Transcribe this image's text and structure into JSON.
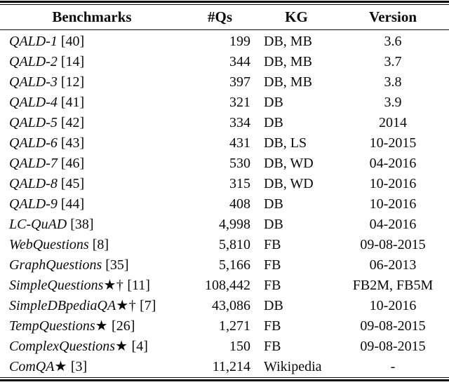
{
  "table": {
    "columns": [
      "Benchmarks",
      "#Qs",
      "KG",
      "Version"
    ],
    "rows": [
      {
        "name": "QALD-1",
        "marks": "",
        "cite": "[40]",
        "qs": "199",
        "kg": "DB, MB",
        "version": "3.6"
      },
      {
        "name": "QALD-2",
        "marks": "",
        "cite": "[14]",
        "qs": "344",
        "kg": "DB, MB",
        "version": "3.7"
      },
      {
        "name": "QALD-3",
        "marks": "",
        "cite": "[12]",
        "qs": "397",
        "kg": "DB, MB",
        "version": "3.8"
      },
      {
        "name": "QALD-4",
        "marks": "",
        "cite": "[41]",
        "qs": "321",
        "kg": "DB",
        "version": "3.9"
      },
      {
        "name": "QALD-5",
        "marks": "",
        "cite": "[42]",
        "qs": "334",
        "kg": "DB",
        "version": "2014"
      },
      {
        "name": "QALD-6",
        "marks": "",
        "cite": "[43]",
        "qs": "431",
        "kg": "DB, LS",
        "version": "10-2015"
      },
      {
        "name": "QALD-7",
        "marks": "",
        "cite": "[46]",
        "qs": "530",
        "kg": "DB, WD",
        "version": "04-2016"
      },
      {
        "name": "QALD-8",
        "marks": "",
        "cite": "[45]",
        "qs": "315",
        "kg": "DB, WD",
        "version": "10-2016"
      },
      {
        "name": "QALD-9",
        "marks": "",
        "cite": "[44]",
        "qs": "408",
        "kg": "DB",
        "version": "10-2016"
      },
      {
        "name": "LC-QuAD",
        "marks": "",
        "cite": "[38]",
        "qs": "4,998",
        "kg": "DB",
        "version": "04-2016"
      },
      {
        "name": "WebQuestions",
        "marks": "",
        "cite": "[8]",
        "qs": "5,810",
        "kg": "FB",
        "version": "09-08-2015"
      },
      {
        "name": "GraphQuestions",
        "marks": "",
        "cite": "[35]",
        "qs": "5,166",
        "kg": "FB",
        "version": "06-2013"
      },
      {
        "name": "SimpleQuestions",
        "marks": "★†",
        "cite": "[11]",
        "qs": "108,442",
        "kg": "FB",
        "version": "FB2M, FB5M"
      },
      {
        "name": "SimpleDBpediaQA",
        "marks": "★†",
        "cite": "[7]",
        "qs": "43,086",
        "kg": "DB",
        "version": "10-2016"
      },
      {
        "name": "TempQuestions",
        "marks": "★",
        "cite": "[26]",
        "qs": "1,271",
        "kg": "FB",
        "version": "09-08-2015"
      },
      {
        "name": "ComplexQuestions",
        "marks": "★",
        "cite": "[4]",
        "qs": "150",
        "kg": "FB",
        "version": "09-08-2015"
      },
      {
        "name": "ComQA",
        "marks": "★",
        "cite": "[3]",
        "qs": "11,214",
        "kg": "Wikipedia",
        "version": "-"
      }
    ]
  }
}
